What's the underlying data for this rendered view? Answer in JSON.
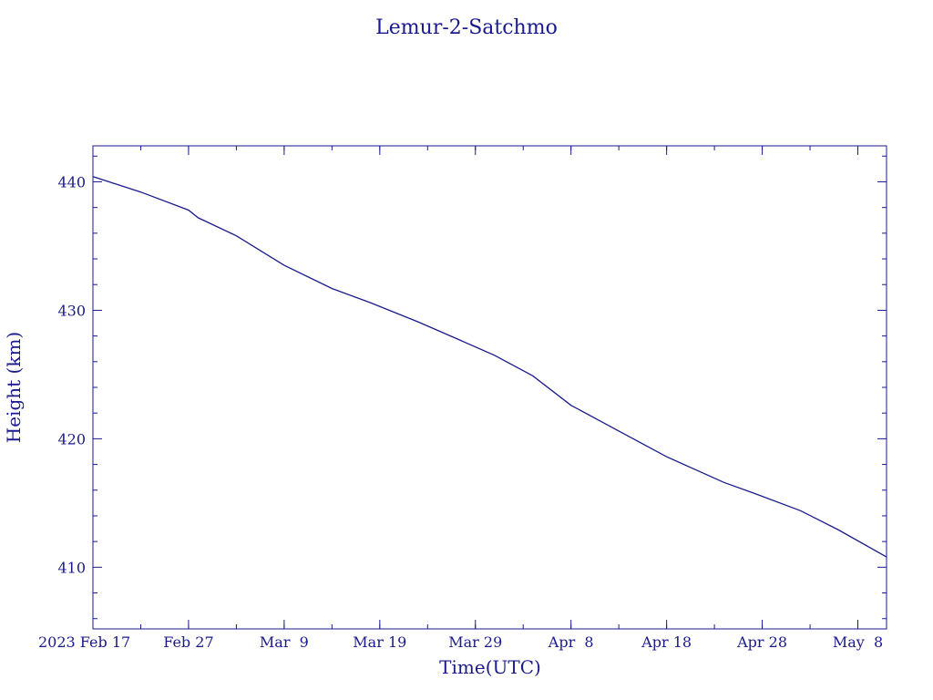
{
  "chart_data": {
    "type": "line",
    "title": "Lemur-2-Satchmo",
    "xlabel": "Time(UTC)",
    "ylabel": "Height (km)",
    "color": "#1a1a8c",
    "grid": false,
    "legend": "none",
    "xlim": [
      "2023-02-17",
      "2023-05-11"
    ],
    "ylim": [
      405.2,
      442.8
    ],
    "x_ticks": [
      "2023-02-17",
      "2023-02-27",
      "2023-03-09",
      "2023-03-19",
      "2023-03-29",
      "2023-04-08",
      "2023-04-18",
      "2023-04-28",
      "2023-05-08"
    ],
    "x_tick_labels": [
      "2023 Feb 17",
      "Feb 27",
      "Mar  9",
      "Mar 19",
      "Mar 29",
      "Apr  8",
      "Apr 18",
      "Apr 28",
      "May  8"
    ],
    "y_ticks": [
      410,
      420,
      430,
      440
    ],
    "y_tick_labels": [
      "410",
      "420",
      "430",
      "440"
    ],
    "series": [
      {
        "x": [
          "2023-02-17",
          "2023-02-22",
          "2023-02-27",
          "2023-02-28",
          "2023-03-04",
          "2023-03-09",
          "2023-03-14",
          "2023-03-18",
          "2023-03-23",
          "2023-03-27",
          "2023-03-31",
          "2023-04-04",
          "2023-04-08",
          "2023-04-13",
          "2023-04-18",
          "2023-04-24",
          "2023-04-27",
          "2023-05-02",
          "2023-05-06",
          "2023-05-11"
        ],
        "y": [
          440.4,
          439.2,
          437.8,
          437.2,
          435.8,
          433.5,
          431.7,
          430.6,
          429.1,
          427.8,
          426.5,
          424.9,
          422.6,
          420.6,
          418.6,
          416.6,
          415.8,
          414.4,
          412.9,
          410.8
        ]
      }
    ]
  }
}
